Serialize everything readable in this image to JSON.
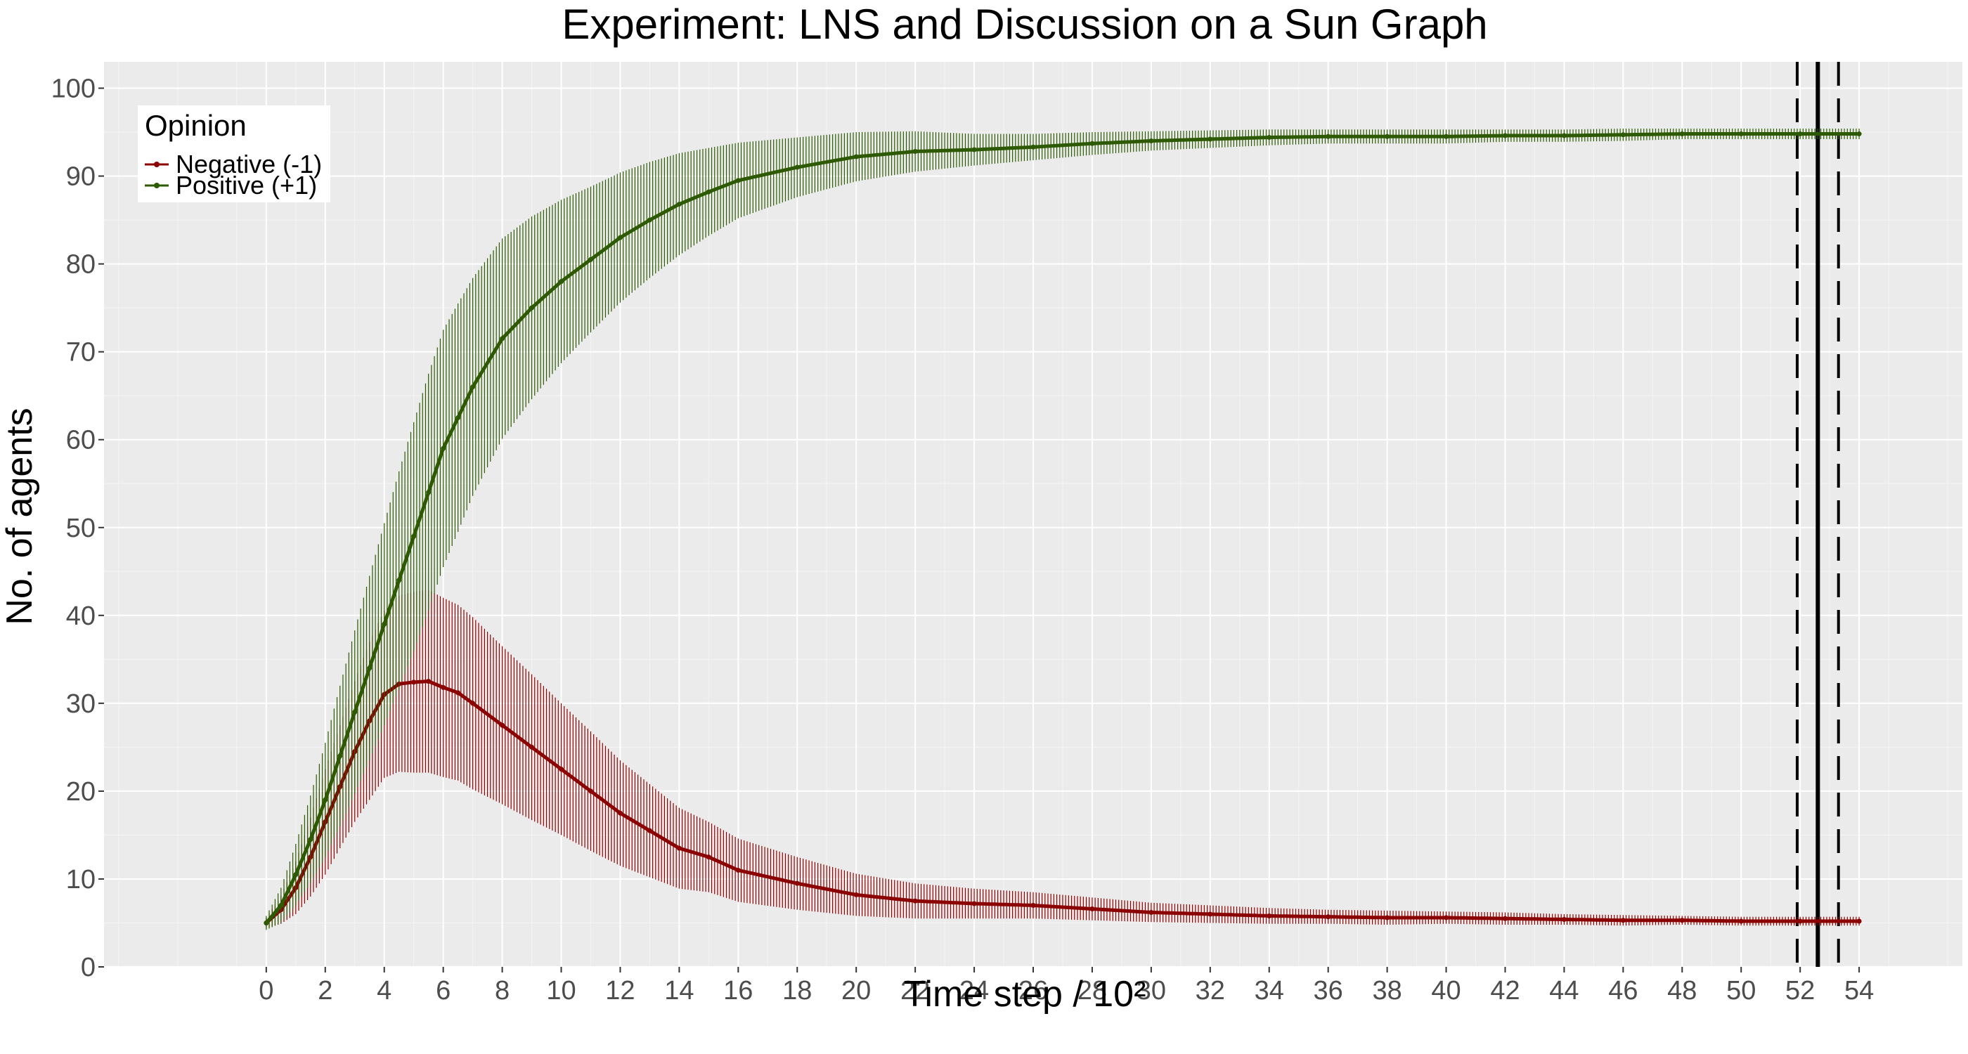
{
  "chart_data": {
    "type": "line",
    "title": "Experiment: LNS and Discussion on a Sun Graph",
    "xlabel": "Time step / 10²",
    "ylabel": "No. of agents",
    "xlim": [
      -5.5,
      57.5
    ],
    "ylim": [
      0,
      103
    ],
    "x_ticks": [
      0,
      2,
      4,
      6,
      8,
      10,
      12,
      14,
      16,
      18,
      20,
      22,
      24,
      26,
      28,
      30,
      32,
      34,
      36,
      38,
      40,
      42,
      44,
      46,
      48,
      50,
      52,
      54
    ],
    "y_ticks": [
      0,
      10,
      20,
      30,
      40,
      50,
      60,
      70,
      80,
      90,
      100
    ],
    "grid": true,
    "error_bars": true,
    "legend": {
      "title": "Opinion",
      "position": "top-left",
      "entries": [
        "Negative (-1)",
        "Positive (+1)"
      ]
    },
    "series": [
      {
        "name": "Negative (-1)",
        "color": "#8b0000",
        "x": [
          0,
          0.5,
          1,
          1.5,
          2,
          2.5,
          3,
          3.5,
          4,
          4.5,
          5,
          5.5,
          6,
          6.5,
          7,
          8,
          9,
          10,
          11,
          12,
          13,
          14,
          15,
          16,
          18,
          20,
          22,
          24,
          26,
          28,
          30,
          32,
          34,
          36,
          38,
          40,
          42,
          44,
          46,
          48,
          50,
          52,
          54
        ],
        "y": [
          5,
          6.5,
          9,
          12.5,
          16.5,
          20.5,
          24.5,
          28,
          31,
          32.2,
          32.4,
          32.5,
          31.8,
          31.2,
          30,
          27.5,
          25,
          22.5,
          20,
          17.5,
          15.5,
          13.5,
          12.5,
          11,
          9.5,
          8.2,
          7.5,
          7.2,
          7,
          6.6,
          6.2,
          6,
          5.8,
          5.7,
          5.6,
          5.6,
          5.5,
          5.4,
          5.3,
          5.3,
          5.2,
          5.2,
          5.2
        ],
        "err": [
          0.6,
          1.6,
          3,
          4.5,
          6,
          7,
          8,
          9,
          9.5,
          10,
          10.3,
          10.4,
          10.2,
          10,
          9.8,
          9,
          8.3,
          7.5,
          6.8,
          6,
          5.3,
          4.6,
          4,
          3.6,
          3,
          2.4,
          2,
          1.7,
          1.5,
          1.3,
          1.1,
          1,
          0.9,
          0.8,
          0.8,
          0.7,
          0.7,
          0.6,
          0.6,
          0.5,
          0.5,
          0.5,
          0.5
        ]
      },
      {
        "name": "Positive (+1)",
        "color": "#2d5a00",
        "x": [
          0,
          0.5,
          1,
          1.5,
          2,
          2.5,
          3,
          3.5,
          4,
          4.5,
          5,
          5.5,
          6,
          6.5,
          7,
          8,
          9,
          10,
          11,
          12,
          13,
          14,
          15,
          16,
          18,
          20,
          22,
          24,
          26,
          28,
          30,
          32,
          34,
          36,
          38,
          40,
          42,
          44,
          46,
          48,
          50,
          52,
          54
        ],
        "y": [
          5,
          7,
          10.5,
          14.5,
          19,
          24,
          29,
          34,
          39,
          44,
          49,
          54,
          59,
          62.5,
          66,
          71.5,
          75,
          78,
          80.5,
          83,
          85,
          86.8,
          88.2,
          89.5,
          91,
          92.2,
          92.8,
          93,
          93.3,
          93.7,
          94,
          94.2,
          94.4,
          94.5,
          94.5,
          94.5,
          94.6,
          94.6,
          94.7,
          94.8,
          94.8,
          94.8,
          94.8
        ],
        "err": [
          0.8,
          2,
          3.5,
          5,
          6.5,
          8,
          9.3,
          10.5,
          11.5,
          12.4,
          13,
          13.5,
          13.5,
          13,
          12.4,
          11.4,
          10.4,
          9.3,
          8.3,
          7.4,
          6.6,
          5.8,
          5,
          4.3,
          3.4,
          2.8,
          2.3,
          1.8,
          1.5,
          1.3,
          1.1,
          1,
          0.9,
          0.8,
          0.8,
          0.8,
          0.7,
          0.7,
          0.7,
          0.6,
          0.6,
          0.6,
          0.6
        ]
      }
    ],
    "vlines": [
      {
        "x": 52.6,
        "style": "solid"
      },
      {
        "x": 51.9,
        "style": "dashed"
      },
      {
        "x": 53.3,
        "style": "dashed"
      }
    ],
    "colors": {
      "panel": "#ebebeb",
      "grid_major": "#ffffff",
      "grid_minor": "#f5f5f5",
      "axis_text": "#4d4d4d"
    }
  }
}
